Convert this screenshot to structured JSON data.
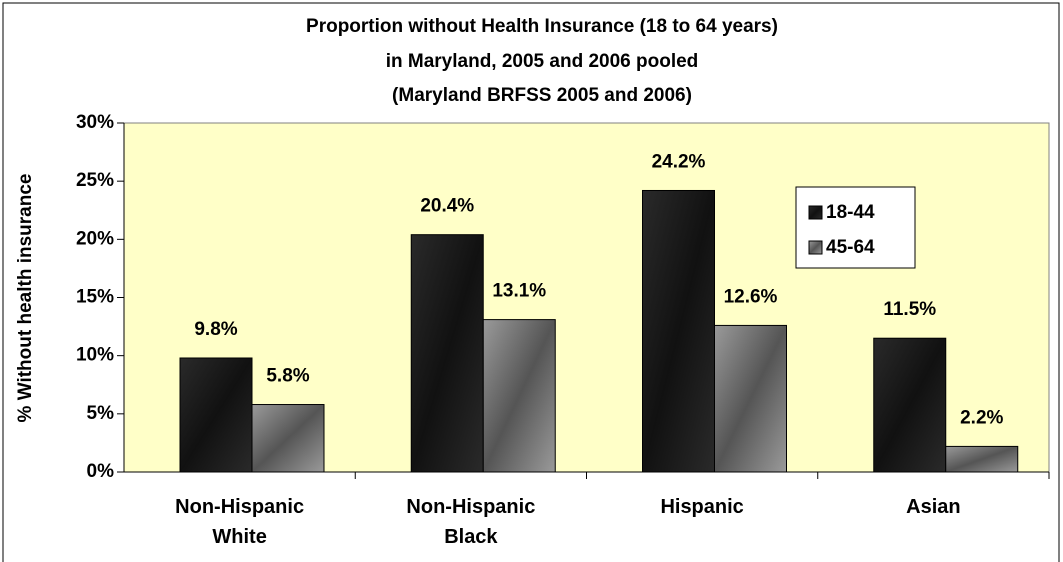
{
  "chart_data": {
    "type": "bar",
    "title": [
      "Proportion without Health Insurance (18 to 64 years)",
      "in Maryland,  2005 and 2006 pooled",
      "(Maryland BRFSS 2005 and 2006)"
    ],
    "y_label": "% Without health insurance",
    "categories": [
      "Non-Hispanic White",
      "Non-Hispanic Black",
      "Hispanic",
      "Asian"
    ],
    "series": [
      {
        "name": "18-44",
        "color": "#2a2a2a",
        "values": [
          9.8,
          20.4,
          24.2,
          11.5
        ],
        "value_labels": [
          "9.8%",
          "20.4%",
          "24.2%",
          "11.5%"
        ]
      },
      {
        "name": "45-64",
        "color": "#9a9a9a",
        "values": [
          5.8,
          13.1,
          12.6,
          2.2
        ],
        "value_labels": [
          "5.8%",
          "13.1%",
          "12.6%",
          "2.2%"
        ]
      }
    ],
    "ylim": [
      0,
      30
    ],
    "yticks": [
      {
        "value": 0,
        "label": "0%"
      },
      {
        "value": 5,
        "label": "5%"
      },
      {
        "value": 10,
        "label": "10%"
      },
      {
        "value": 15,
        "label": "15%"
      },
      {
        "value": 20,
        "label": "20%"
      },
      {
        "value": 25,
        "label": "25%"
      },
      {
        "value": 30,
        "label": "30%"
      }
    ],
    "legend": "upper right",
    "plot_background": "#ffffc8"
  }
}
